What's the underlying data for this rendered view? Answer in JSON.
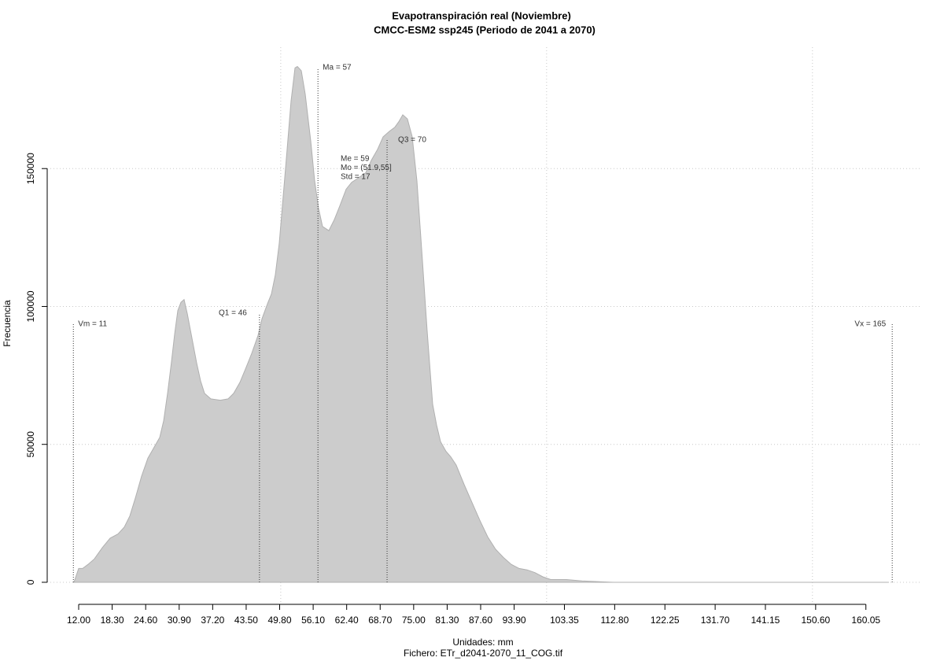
{
  "chart_data": {
    "type": "area",
    "title": "Evapotranspiración real (Noviembre)",
    "subtitle": "CMCC-ESM2 ssp245 (Periodo de 2041 a 2070)",
    "ylabel": "Frecuencia",
    "xlabel": "Unidades: mm",
    "caption": "Fichero: ETr_d2041-2070_11_COG.tif",
    "color": "#cccccc",
    "x": [
      11.11,
      12.0,
      12.74,
      13.78,
      14.96,
      16.44,
      17.92,
      19.4,
      20.58,
      21.62,
      22.65,
      23.83,
      25.02,
      26.2,
      27.24,
      27.98,
      28.72,
      29.46,
      30.05,
      30.64,
      31.23,
      31.82,
      32.41,
      33.15,
      34.19,
      34.93,
      35.67,
      36.85,
      38.63,
      40.11,
      41.14,
      42.33,
      43.51,
      44.55,
      45.73,
      46.47,
      47.5,
      48.24,
      48.98,
      49.72,
      50.46,
      51.21,
      51.94,
      52.68,
      53.12,
      53.86,
      54.6,
      55.64,
      56.38,
      57.12,
      57.86,
      59.04,
      60.08,
      61.11,
      62.3,
      63.33,
      64.51,
      66.0,
      67.03,
      68.21,
      69.25,
      70.43,
      71.47,
      72.21,
      72.95,
      73.83,
      74.72,
      75.61,
      76.64,
      77.53,
      78.57,
      79.31,
      80.05,
      81.08,
      81.97,
      83.0,
      84.48,
      85.96,
      87.44,
      88.92,
      90.4,
      91.88,
      93.36,
      94.84,
      96.32,
      97.8,
      99.28,
      100.76,
      103.72,
      106.67,
      112.59,
      164.37
    ],
    "values": [
      0,
      5000,
      5000,
      6500,
      8500,
      12500,
      16000,
      17500,
      20000,
      24000,
      30500,
      38500,
      45000,
      49000,
      52500,
      58500,
      68500,
      80000,
      90000,
      98500,
      101500,
      102500,
      97500,
      90000,
      79500,
      73000,
      68500,
      66500,
      66000,
      66500,
      68500,
      72500,
      78000,
      83000,
      89500,
      95500,
      101000,
      104500,
      111500,
      123000,
      140000,
      157000,
      174500,
      186500,
      187000,
      185500,
      177000,
      160000,
      145500,
      135500,
      129000,
      127500,
      131500,
      136500,
      142500,
      145000,
      146500,
      148500,
      153000,
      157000,
      161500,
      163500,
      165000,
      167000,
      169500,
      168000,
      161500,
      145500,
      117000,
      91500,
      64500,
      57000,
      51000,
      47500,
      45500,
      42500,
      35500,
      29000,
      22500,
      16500,
      12000,
      9000,
      6500,
      5000,
      4500,
      3500,
      2000,
      1000,
      1000,
      500,
      0,
      0
    ],
    "xlim": [
      6.08,
      170.3
    ],
    "ylim": [
      -8000,
      194000
    ],
    "xticks": [
      {
        "value": 12,
        "label": "12.00"
      },
      {
        "value": 18.3,
        "label": "18.30"
      },
      {
        "value": 24.6,
        "label": "24.60"
      },
      {
        "value": 30.9,
        "label": "30.90"
      },
      {
        "value": 37.2,
        "label": "37.20"
      },
      {
        "value": 43.5,
        "label": "43.50"
      },
      {
        "value": 49.8,
        "label": "49.80"
      },
      {
        "value": 56.1,
        "label": "56.10"
      },
      {
        "value": 62.4,
        "label": "62.40"
      },
      {
        "value": 68.7,
        "label": "68.70"
      },
      {
        "value": 75,
        "label": "75.00"
      },
      {
        "value": 81.3,
        "label": "81.30"
      },
      {
        "value": 87.6,
        "label": "87.60"
      },
      {
        "value": 93.9,
        "label": "93.90"
      },
      {
        "value": 103.35,
        "label": "103.35"
      },
      {
        "value": 112.8,
        "label": "112.80"
      },
      {
        "value": 122.25,
        "label": "122.25"
      },
      {
        "value": 131.7,
        "label": "131.70"
      },
      {
        "value": 141.15,
        "label": "141.15"
      },
      {
        "value": 150.6,
        "label": "150.60"
      },
      {
        "value": 160.05,
        "label": "160.05"
      }
    ],
    "xgrid": [
      50,
      100,
      150
    ],
    "yticks": [
      0,
      50000,
      100000,
      150000
    ],
    "grid": true,
    "markers": [
      {
        "label": "Vm = 11",
        "value": 11
      },
      {
        "label": "Q1 = 46",
        "value": 46
      },
      {
        "label": "Ma = 57",
        "value": 57
      },
      {
        "label": "Q3 = 70",
        "value": 70
      },
      {
        "label": "Vx = 165",
        "value": 165
      }
    ],
    "stats": [
      "Me = 59",
      "Mo = (51.9,55]",
      "Std = 17"
    ]
  }
}
